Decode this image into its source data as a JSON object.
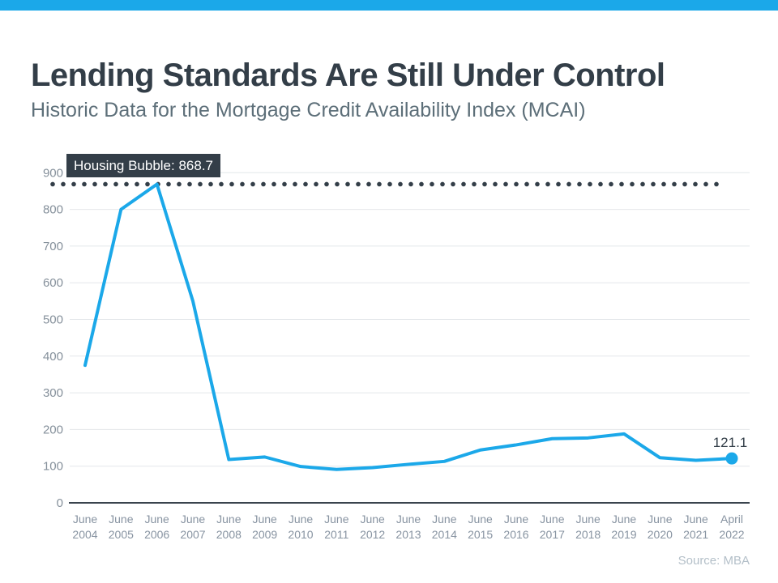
{
  "page": {
    "title": "Lending Standards Are Still Under Control",
    "subtitle": "Historic Data for the Mortgage Credit Availability Index (MCAI)",
    "source": "Source: MBA",
    "accent_bar_color": "#1BA8E9"
  },
  "chart_data": {
    "type": "line",
    "title": "Historic Data for the Mortgage Credit Availability Index (MCAI)",
    "categories": [
      "June 2004",
      "June 2005",
      "June 2006",
      "June 2007",
      "June 2008",
      "June 2009",
      "June 2010",
      "June 2011",
      "June 2012",
      "June 2013",
      "June 2014",
      "June 2015",
      "June 2016",
      "June 2017",
      "June 2018",
      "June 2019",
      "June 2020",
      "June 2021",
      "April 2022"
    ],
    "values": [
      375,
      800,
      868.7,
      550,
      118,
      125,
      99,
      91,
      96,
      105,
      113,
      144,
      158,
      175,
      177,
      188,
      123,
      116,
      121.1
    ],
    "ylim": [
      0,
      900
    ],
    "ytick_step": 100,
    "grid": true,
    "legend": "none",
    "annotation": {
      "label": "Housing Bubble: 868.7",
      "value": 868.7
    },
    "end_label": "121.1",
    "line_color": "#1BA8E9",
    "threshold_dot_color": "#333E48",
    "axis_color": "#3A444E",
    "gridline_color": "#E4E7EA",
    "tick_label_color": "#85909B",
    "x_label_color": "#8793A1"
  }
}
